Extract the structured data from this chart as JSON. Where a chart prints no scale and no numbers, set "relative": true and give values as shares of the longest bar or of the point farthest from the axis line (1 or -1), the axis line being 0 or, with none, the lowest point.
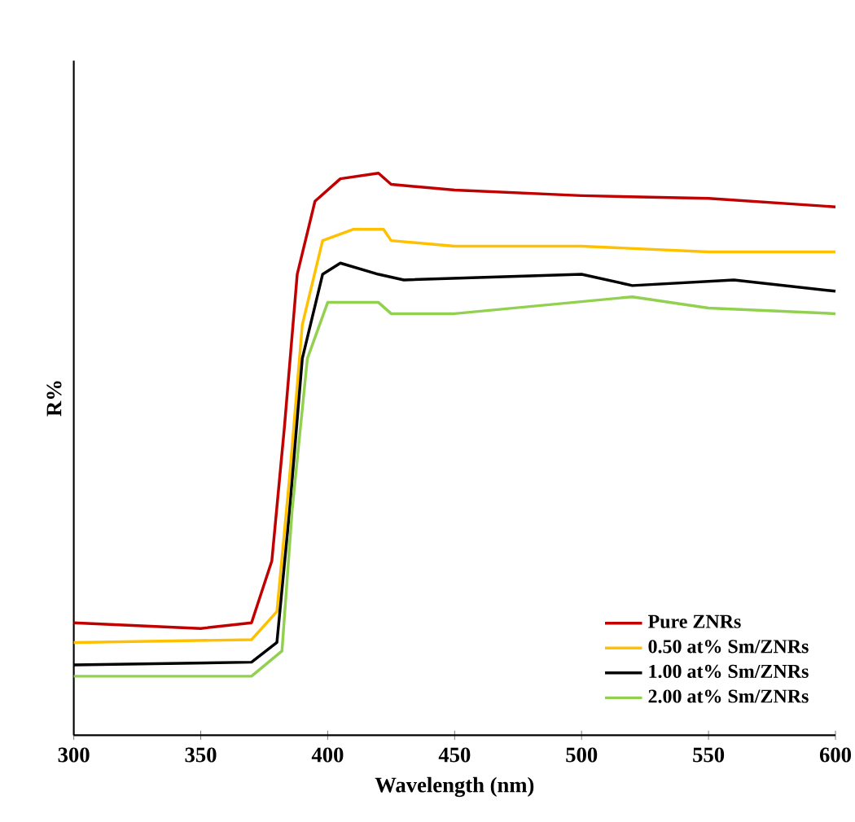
{
  "chart_data": {
    "type": "line",
    "relative": true,
    "xlabel": "Wavelength (nm)",
    "ylabel": "R%",
    "xlim": [
      300,
      600
    ],
    "xticks": [
      300,
      350,
      400,
      450,
      500,
      550,
      600
    ],
    "legend": "bottom right",
    "grid": false,
    "series": [
      {
        "name": "Pure ZNRs",
        "color": "#c00000",
        "x": [
          300,
          350,
          370,
          378,
          383,
          388,
          395,
          405,
          420,
          425,
          450,
          500,
          550,
          600
        ],
        "values": [
          0.2,
          0.19,
          0.2,
          0.31,
          0.55,
          0.82,
          0.95,
          0.99,
          1.0,
          0.98,
          0.97,
          0.96,
          0.955,
          0.94
        ]
      },
      {
        "name": "0.50 at% Sm/ZNRs",
        "color": "#ffc000",
        "x": [
          300,
          370,
          380,
          385,
          390,
          398,
          410,
          422,
          425,
          450,
          500,
          550,
          600
        ],
        "values": [
          0.165,
          0.17,
          0.22,
          0.46,
          0.73,
          0.88,
          0.9,
          0.9,
          0.88,
          0.87,
          0.87,
          0.86,
          0.86
        ]
      },
      {
        "name": "1.00 at% Sm/ZNRs",
        "color": "#000000",
        "x": [
          300,
          370,
          380,
          385,
          390,
          398,
          405,
          420,
          430,
          500,
          520,
          560,
          600
        ],
        "values": [
          0.125,
          0.13,
          0.165,
          0.4,
          0.67,
          0.82,
          0.84,
          0.82,
          0.81,
          0.82,
          0.8,
          0.81,
          0.79
        ]
      },
      {
        "name": "2.00 at% Sm/ZNRs",
        "color": "#92d050",
        "x": [
          300,
          370,
          382,
          386,
          392,
          400,
          420,
          425,
          450,
          520,
          550,
          600
        ],
        "values": [
          0.105,
          0.105,
          0.15,
          0.4,
          0.67,
          0.77,
          0.77,
          0.75,
          0.75,
          0.78,
          0.76,
          0.75
        ]
      }
    ]
  }
}
